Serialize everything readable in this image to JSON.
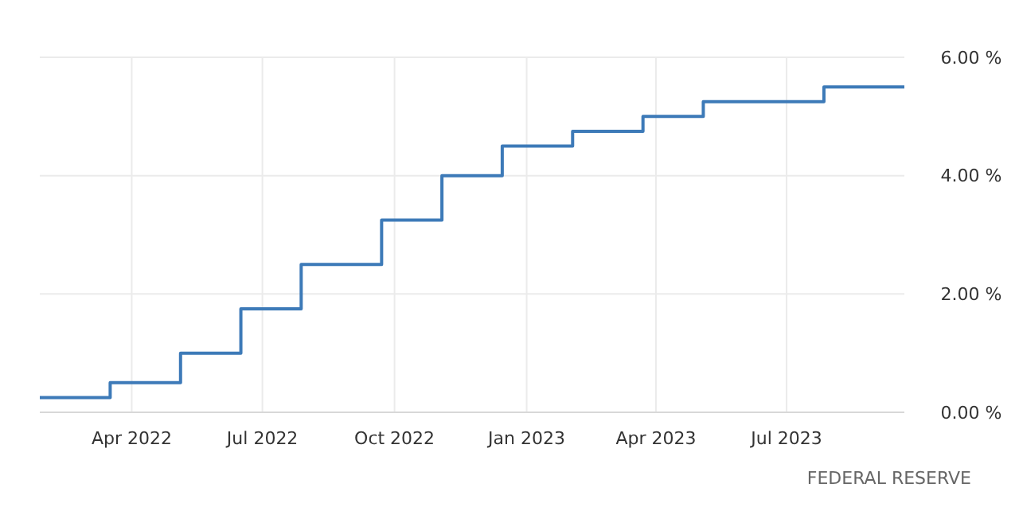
{
  "chart_data": {
    "type": "step",
    "x": [
      "2022-01-27",
      "2022-03-17",
      "2022-05-05",
      "2022-06-16",
      "2022-07-28",
      "2022-09-22",
      "2022-11-03",
      "2022-12-15",
      "2023-02-02",
      "2023-03-23",
      "2023-05-04",
      "2023-07-27",
      "2023-09-21"
    ],
    "series": [
      {
        "color": "#3d7ab8",
        "values": [
          0.25,
          0.5,
          1,
          1.75,
          2.5,
          3.25,
          4,
          4.5,
          4.75,
          5,
          5.25,
          5.5,
          5.5
        ]
      }
    ],
    "xlim": [
      "2022-01-27",
      "2023-09-21"
    ],
    "xticks": [
      {
        "value": "2022-04-01",
        "label": "Apr 2022"
      },
      {
        "value": "2022-07-01",
        "label": "Jul 2022"
      },
      {
        "value": "2022-10-01",
        "label": "Oct 2022"
      },
      {
        "value": "2023-01-01",
        "label": "Jan 2023"
      },
      {
        "value": "2023-04-01",
        "label": "Apr 2023"
      },
      {
        "value": "2023-07-01",
        "label": "Jul 2023"
      }
    ],
    "ylim": [
      0,
      6
    ],
    "yticks": [
      {
        "value": 0,
        "label": "0.00 %"
      },
      {
        "value": 2,
        "label": "2.00 %"
      },
      {
        "value": 4,
        "label": "4.00 %"
      },
      {
        "value": 6,
        "label": "6.00 %"
      }
    ],
    "grid": true,
    "line_style": "solid",
    "annotations": [
      "FEDERAL RESERVE"
    ]
  }
}
